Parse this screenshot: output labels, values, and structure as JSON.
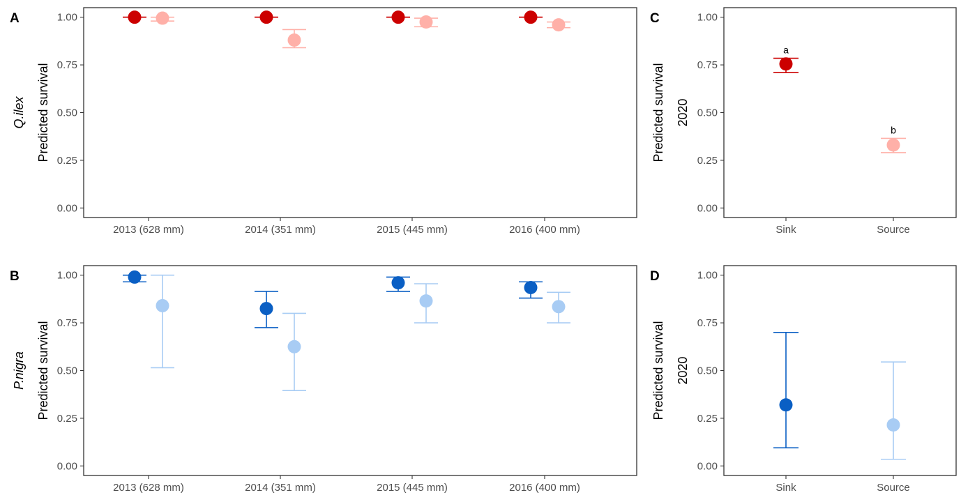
{
  "colors": {
    "qilex_sink": "#cc0000",
    "qilex_source": "#ffb0a8",
    "pnigra_sink": "#0a5fc4",
    "pnigra_source": "#a8ccf4"
  },
  "chart_data": [
    {
      "panel": "A",
      "type": "scatter",
      "row_label": "Q.ilex",
      "ylabel": "Predicted survival",
      "categories": [
        "2013 (628 mm)",
        "2014 (351 mm)",
        "2015 (445 mm)",
        "2016 (400 mm)"
      ],
      "ylim": [
        -0.05,
        1.05
      ],
      "yticks": [
        "0.00",
        "0.25",
        "0.50",
        "0.75",
        "1.00"
      ],
      "series": [
        {
          "color_key": "qilex_sink",
          "values": [
            1.0,
            1.0,
            1.0,
            1.0
          ],
          "lower": [
            1.0,
            1.0,
            1.0,
            1.0
          ],
          "upper": [
            1.0,
            1.0,
            1.0,
            1.0
          ]
        },
        {
          "color_key": "qilex_source",
          "values": [
            0.995,
            0.88,
            0.975,
            0.96
          ],
          "lower": [
            0.98,
            0.84,
            0.95,
            0.945
          ],
          "upper": [
            1.0,
            0.935,
            0.995,
            0.975
          ]
        }
      ],
      "annotations": []
    },
    {
      "panel": "B",
      "type": "scatter",
      "row_label": "P.nigra",
      "ylabel": "Predicted survival",
      "categories": [
        "2013 (628 mm)",
        "2014 (351 mm)",
        "2015 (445 mm)",
        "2016 (400 mm)"
      ],
      "ylim": [
        -0.05,
        1.05
      ],
      "yticks": [
        "0.00",
        "0.25",
        "0.50",
        "0.75",
        "1.00"
      ],
      "series": [
        {
          "color_key": "pnigra_sink",
          "values": [
            0.99,
            0.825,
            0.96,
            0.935
          ],
          "lower": [
            0.965,
            0.725,
            0.915,
            0.88
          ],
          "upper": [
            1.0,
            0.915,
            0.99,
            0.965
          ]
        },
        {
          "color_key": "pnigra_source",
          "values": [
            0.84,
            0.625,
            0.865,
            0.835
          ],
          "lower": [
            0.515,
            0.395,
            0.75,
            0.75
          ],
          "upper": [
            1.0,
            0.8,
            0.955,
            0.91
          ]
        }
      ],
      "annotations": []
    },
    {
      "panel": "C",
      "type": "scatter",
      "ylabel": "Predicted survival",
      "ylabel2": "2020",
      "categories": [
        "Sink",
        "Source"
      ],
      "ylim": [
        -0.05,
        1.05
      ],
      "yticks": [
        "0.00",
        "0.25",
        "0.50",
        "0.75",
        "1.00"
      ],
      "series": [
        {
          "color_key": "qilex_sink",
          "values": [
            0.755,
            null
          ],
          "lower": [
            0.71,
            null
          ],
          "upper": [
            0.785,
            null
          ]
        },
        {
          "color_key": "qilex_source",
          "values": [
            null,
            0.33
          ],
          "lower": [
            null,
            0.29
          ],
          "upper": [
            null,
            0.365
          ]
        }
      ],
      "annotations": [
        {
          "category": 0,
          "text": "a",
          "y": 0.81
        },
        {
          "category": 1,
          "text": "b",
          "y": 0.39
        }
      ]
    },
    {
      "panel": "D",
      "type": "scatter",
      "ylabel": "Predicted survival",
      "ylabel2": "2020",
      "categories": [
        "Sink",
        "Source"
      ],
      "ylim": [
        -0.05,
        1.05
      ],
      "yticks": [
        "0.00",
        "0.25",
        "0.50",
        "0.75",
        "1.00"
      ],
      "series": [
        {
          "color_key": "pnigra_sink",
          "values": [
            0.32,
            null
          ],
          "lower": [
            0.095,
            null
          ],
          "upper": [
            0.7,
            null
          ]
        },
        {
          "color_key": "pnigra_source",
          "values": [
            null,
            0.215
          ],
          "lower": [
            null,
            0.035
          ],
          "upper": [
            null,
            0.545
          ]
        }
      ],
      "annotations": []
    }
  ]
}
